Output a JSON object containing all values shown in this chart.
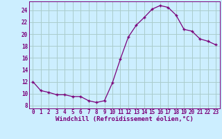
{
  "x": [
    0,
    1,
    2,
    3,
    4,
    5,
    6,
    7,
    8,
    9,
    10,
    11,
    12,
    13,
    14,
    15,
    16,
    17,
    18,
    19,
    20,
    21,
    22,
    23
  ],
  "y": [
    12,
    10.5,
    10.2,
    9.8,
    9.8,
    9.5,
    9.5,
    8.8,
    8.5,
    8.8,
    11.8,
    15.8,
    19.5,
    21.5,
    22.8,
    24.2,
    24.8,
    24.5,
    23.2,
    20.8,
    20.5,
    19.2,
    18.8,
    18.2
  ],
  "line_color": "#7a007a",
  "marker": "+",
  "marker_color": "#7a007a",
  "bg_color": "#cceeff",
  "grid_color": "#aacccc",
  "tick_color": "#7a007a",
  "xlabel": "Windchill (Refroidissement éolien,°C)",
  "xlabel_color": "#7a007a",
  "ylabel_ticks": [
    8,
    10,
    12,
    14,
    16,
    18,
    20,
    22,
    24
  ],
  "xlim": [
    -0.5,
    23.5
  ],
  "ylim": [
    7.5,
    25.5
  ],
  "tick_fontsize": 5.5,
  "label_fontsize": 6.5
}
